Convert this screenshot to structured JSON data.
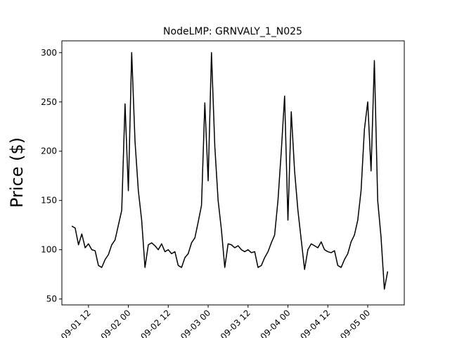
{
  "chart_data": {
    "type": "line",
    "title": "NodeLMP: GRNVALY_1_N025",
    "y_label": "Price ($)",
    "x": [
      "09-01 07",
      "09-01 08",
      "09-01 09",
      "09-01 10",
      "09-01 11",
      "09-01 12",
      "09-01 13",
      "09-01 14",
      "09-01 15",
      "09-01 16",
      "09-01 17",
      "09-01 18",
      "09-01 19",
      "09-01 20",
      "09-01 21",
      "09-01 22",
      "09-01 23",
      "09-02 00",
      "09-02 01",
      "09-02 02",
      "09-02 03",
      "09-02 04",
      "09-02 05",
      "09-02 06",
      "09-02 07",
      "09-02 08",
      "09-02 09",
      "09-02 10",
      "09-02 11",
      "09-02 12",
      "09-02 13",
      "09-02 14",
      "09-02 15",
      "09-02 16",
      "09-02 17",
      "09-02 18",
      "09-02 19",
      "09-02 20",
      "09-02 21",
      "09-02 22",
      "09-02 23",
      "09-03 00",
      "09-03 01",
      "09-03 02",
      "09-03 03",
      "09-03 04",
      "09-03 05",
      "09-03 06",
      "09-03 07",
      "09-03 08",
      "09-03 09",
      "09-03 10",
      "09-03 11",
      "09-03 12",
      "09-03 13",
      "09-03 14",
      "09-03 15",
      "09-03 16",
      "09-03 17",
      "09-03 18",
      "09-03 19",
      "09-03 20",
      "09-03 21",
      "09-03 22",
      "09-03 23",
      "09-04 00",
      "09-04 01",
      "09-04 02",
      "09-04 03",
      "09-04 04",
      "09-04 05",
      "09-04 06",
      "09-04 07",
      "09-04 08",
      "09-04 09",
      "09-04 10",
      "09-04 11",
      "09-04 12",
      "09-04 13",
      "09-04 14",
      "09-04 15",
      "09-04 16",
      "09-04 17",
      "09-04 18",
      "09-04 19",
      "09-04 20",
      "09-04 21",
      "09-04 22",
      "09-04 23",
      "09-05 00",
      "09-05 01",
      "09-05 02",
      "09-05 03",
      "09-05 04",
      "09-05 05",
      "09-05 06"
    ],
    "series": [
      {
        "name": "GRNVALY_1_N025",
        "color": "#000000",
        "values": [
          124,
          122,
          105,
          116,
          102,
          106,
          100,
          99,
          84,
          82,
          90,
          95,
          105,
          110,
          125,
          140,
          248,
          160,
          300,
          210,
          160,
          130,
          82,
          105,
          107,
          104,
          100,
          106,
          98,
          100,
          96,
          98,
          84,
          82,
          92,
          96,
          107,
          112,
          128,
          145,
          249,
          170,
          300,
          205,
          150,
          120,
          82,
          106,
          105,
          102,
          104,
          100,
          98,
          100,
          97,
          98,
          82,
          84,
          92,
          98,
          107,
          115,
          150,
          200,
          256,
          130,
          240,
          180,
          140,
          110,
          80,
          100,
          106,
          104,
          102,
          108,
          100,
          98,
          97,
          99,
          84,
          82,
          90,
          96,
          108,
          115,
          130,
          160,
          222,
          250,
          180,
          292,
          150,
          113,
          60,
          78
        ]
      }
    ],
    "xlim": [
      "09-01 04",
      "09-05 11"
    ],
    "xticks": [
      "09-01 12",
      "09-02 00",
      "09-02 12",
      "09-03 00",
      "09-03 12",
      "09-04 00",
      "09-04 12",
      "09-05 00"
    ],
    "ylim": [
      44,
      312
    ],
    "yticks": [
      50,
      100,
      150,
      200,
      250,
      300
    ],
    "grid": false
  }
}
